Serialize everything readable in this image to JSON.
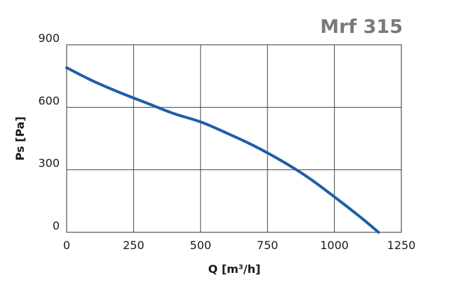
{
  "chart_data": {
    "type": "line",
    "title": "Mrf 315",
    "xlabel": "Q [m³/h]",
    "ylabel": "Ps [Pa]",
    "xlim": [
      0,
      1250
    ],
    "ylim": [
      0,
      900
    ],
    "x_ticks": [
      "0",
      "250",
      "500",
      "750",
      "1000",
      "1250"
    ],
    "y_ticks": [
      "0",
      "300",
      "600",
      "900"
    ],
    "grid": true,
    "series": [
      {
        "color": "#1f5ea8",
        "x": [
          0,
          100,
          200,
          300,
          400,
          500,
          600,
          700,
          800,
          900,
          1000,
          1100,
          1165
        ],
        "y": [
          790,
          725,
          670,
          620,
          570,
          530,
          475,
          415,
          345,
          265,
          170,
          70,
          0
        ]
      }
    ]
  }
}
